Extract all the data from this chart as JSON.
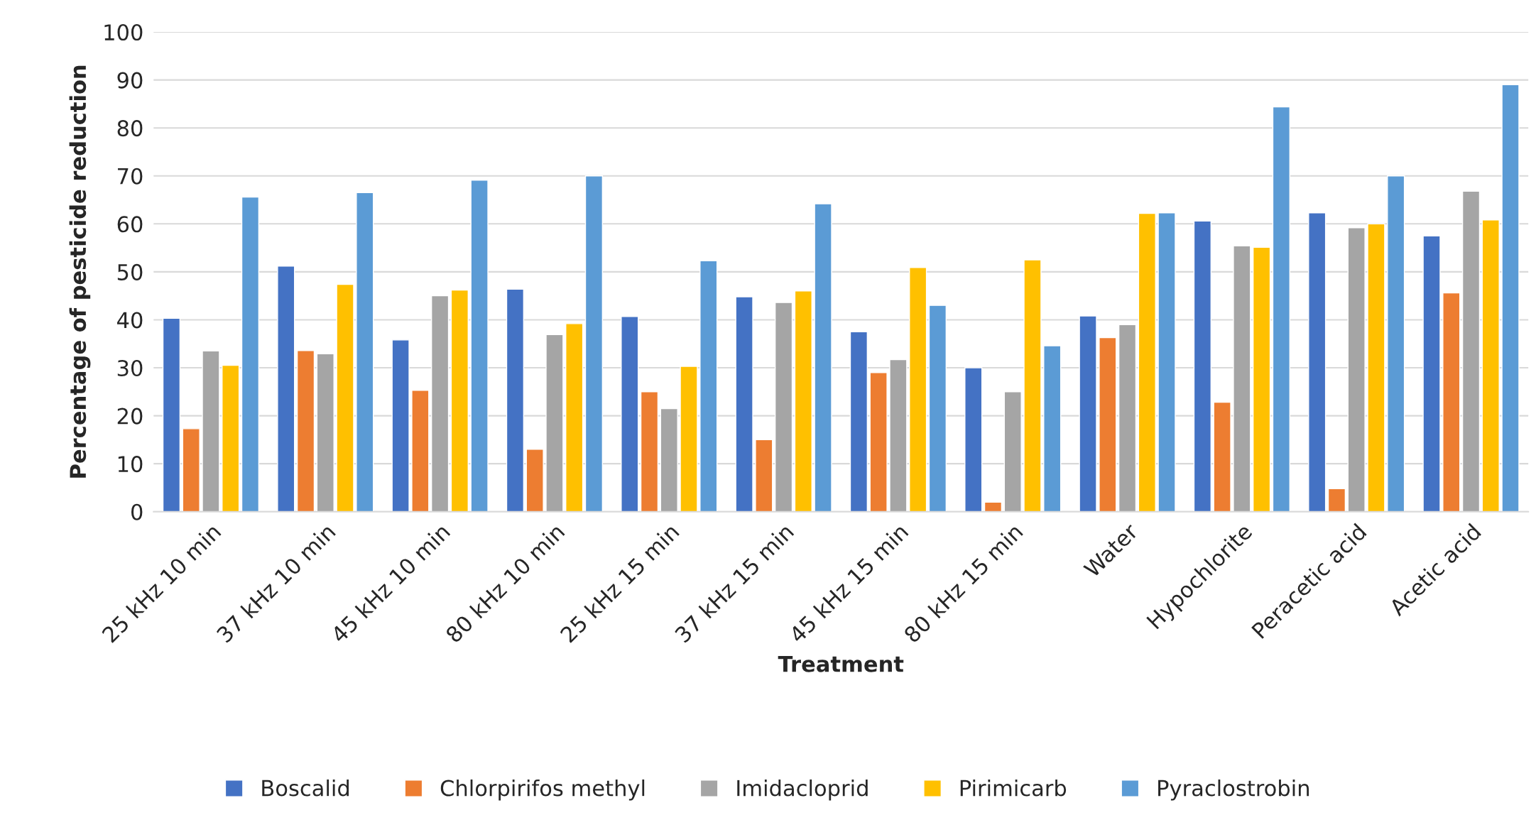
{
  "chart_data": {
    "type": "bar",
    "xlabel": "Treatment",
    "ylabel": "Percentage of pesticide reduction",
    "categories": [
      "25 kHz 10 min",
      "37 kHz 10 min",
      "45 kHz 10 min",
      "80 kHz 10 min",
      "25 kHz 15 min",
      "37 kHz 15 min",
      "45 kHz 15 min",
      "80 kHz 15 min",
      "Water",
      "Hypochlorite",
      "Peracetic acid",
      "Acetic acid"
    ],
    "series": [
      {
        "name": "Boscalid",
        "color": "#4472c4",
        "values": [
          40.3,
          51.2,
          35.8,
          46.4,
          40.7,
          44.8,
          37.5,
          30,
          40.8,
          60.6,
          62.3,
          57.5
        ]
      },
      {
        "name": "Chlorpirifos methyl",
        "color": "#ed7d31",
        "values": [
          17.3,
          33.6,
          25.3,
          13,
          25,
          15,
          29,
          2,
          36.3,
          22.8,
          4.8,
          45.6
        ]
      },
      {
        "name": "Imidacloprid",
        "color": "#a5a5a5",
        "values": [
          33.5,
          32.9,
          45,
          36.9,
          21.5,
          43.6,
          31.7,
          25,
          39,
          55.4,
          59.2,
          66.8
        ]
      },
      {
        "name": "Pirimicarb",
        "color": "#ffc000",
        "values": [
          30.5,
          47.4,
          46.2,
          39.2,
          30.3,
          46,
          50.9,
          52.5,
          62.2,
          55.1,
          60,
          60.8
        ]
      },
      {
        "name": "Pyraclostrobin",
        "color": "#5b9bd5",
        "values": [
          65.6,
          66.5,
          69.1,
          70,
          52.3,
          64.2,
          43,
          34.6,
          62.3,
          84.4,
          70,
          89
        ]
      }
    ],
    "ylim": [
      0,
      100
    ],
    "yticks": [
      0,
      10,
      20,
      30,
      40,
      50,
      60,
      70,
      80,
      90,
      100
    ],
    "grid": "y",
    "legend": "bottom"
  }
}
